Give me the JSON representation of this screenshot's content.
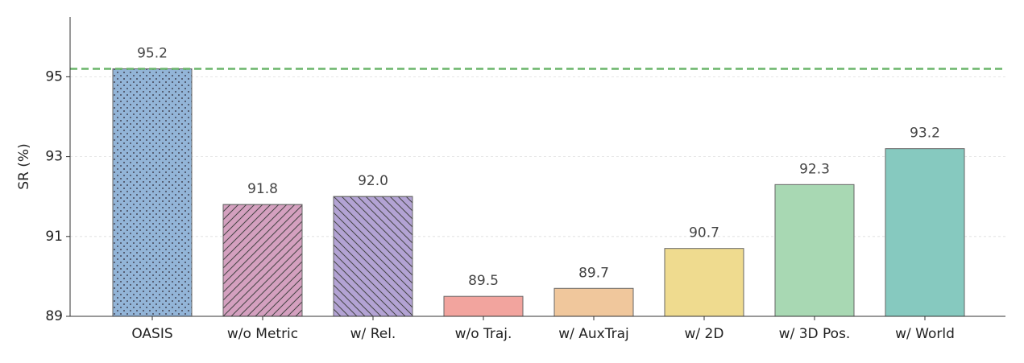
{
  "chart_data": {
    "type": "bar",
    "ylabel": "SR (%)",
    "categories": [
      "OASIS",
      "w/o Metric",
      "w/ Rel.",
      "w/o Traj.",
      "w/ AuxTraj",
      "w/ 2D",
      "w/ 3D Pos.",
      "w/ World"
    ],
    "values": [
      95.2,
      91.8,
      92.0,
      89.5,
      89.7,
      90.7,
      92.3,
      93.2
    ],
    "value_labels": [
      "95.2",
      "91.8",
      "92.0",
      "89.5",
      "89.7",
      "90.7",
      "92.3",
      "93.2"
    ],
    "colors": [
      "#93b5d8",
      "#d4a0bf",
      "#b3a3d4",
      "#f2a49e",
      "#f0c79c",
      "#efdb8f",
      "#a8d8b3",
      "#86c9bf"
    ],
    "hatches": [
      "dots",
      "forward",
      "backward",
      null,
      null,
      null,
      null,
      null
    ],
    "reference_line": 95.2,
    "reference_color": "#6ab56a",
    "ylim": [
      89,
      96.5
    ],
    "yticks": [
      89,
      91,
      93,
      95
    ],
    "grid": true
  }
}
